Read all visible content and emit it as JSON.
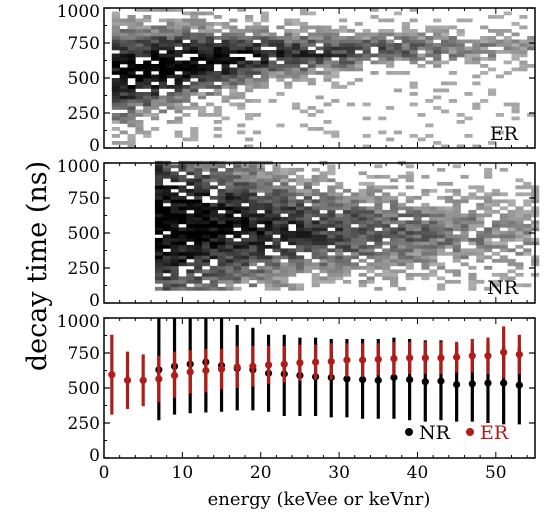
{
  "figure": {
    "ylabel": "decay time (ns)",
    "xlabel": "energy (keVee or keVnr)"
  },
  "chart_data": [
    {
      "type": "heatmap",
      "panel": "top",
      "label": "ER",
      "ylabel": "decay time (ns)",
      "xlim": [
        0,
        55
      ],
      "ylim": [
        0,
        1000
      ],
      "yticks": [
        0,
        250,
        500,
        750,
        1000
      ],
      "grid": false,
      "density_model": {
        "x_range": [
          1,
          55
        ],
        "y_center_by_energy": [
          [
            1,
            520
          ],
          [
            5,
            560
          ],
          [
            10,
            600
          ],
          [
            20,
            660
          ],
          [
            30,
            690
          ],
          [
            45,
            720
          ],
          [
            55,
            720
          ]
        ],
        "y_spread_by_energy": [
          [
            1,
            220
          ],
          [
            10,
            170
          ],
          [
            20,
            110
          ],
          [
            35,
            80
          ],
          [
            55,
            70
          ]
        ],
        "peak_energy": 8
      }
    },
    {
      "type": "heatmap",
      "panel": "middle",
      "label": "NR",
      "ylabel": "decay time (ns)",
      "xlim": [
        0,
        55
      ],
      "ylim": [
        0,
        1000
      ],
      "yticks": [
        0,
        250,
        500,
        750,
        1000
      ],
      "grid": false,
      "density_model": {
        "x_range": [
          6.5,
          55
        ],
        "y_min": 90,
        "y_center_by_energy": [
          [
            6.5,
            560
          ],
          [
            15,
            560
          ],
          [
            30,
            520
          ],
          [
            45,
            500
          ],
          [
            55,
            490
          ]
        ],
        "y_spread_by_energy": [
          [
            6.5,
            420
          ],
          [
            15,
            320
          ],
          [
            25,
            220
          ],
          [
            40,
            180
          ],
          [
            55,
            160
          ]
        ],
        "peak_energy": 7
      }
    },
    {
      "type": "scatter",
      "panel": "bottom",
      "xlabel": "energy (keVee or keVnr)",
      "ylabel": "decay time (ns)",
      "xlim": [
        0,
        55
      ],
      "ylim": [
        0,
        1000
      ],
      "xticks": [
        0,
        10,
        20,
        30,
        40,
        50
      ],
      "yticks": [
        0,
        250,
        500,
        750,
        1000
      ],
      "grid": false,
      "legend_position": "bottom-right",
      "series": [
        {
          "name": "NR",
          "color": "#000000",
          "x": [
            7,
            9,
            11,
            13,
            15,
            17,
            19,
            21,
            23,
            25,
            27,
            29,
            31,
            33,
            35,
            37,
            39,
            41,
            43,
            45,
            47,
            49,
            51,
            53
          ],
          "y": [
            630,
            655,
            670,
            685,
            660,
            640,
            630,
            605,
            600,
            590,
            580,
            575,
            565,
            560,
            555,
            575,
            560,
            545,
            550,
            525,
            530,
            535,
            535,
            520
          ],
          "yerr_low": [
            270,
            310,
            320,
            325,
            330,
            340,
            340,
            330,
            300,
            300,
            300,
            290,
            290,
            280,
            280,
            280,
            270,
            260,
            270,
            260,
            260,
            250,
            240,
            240
          ],
          "yerr_high": [
            1000,
            1000,
            1000,
            1000,
            1000,
            950,
            930,
            880,
            880,
            860,
            860,
            850,
            850,
            850,
            850,
            860,
            850,
            840,
            840,
            810,
            800,
            810,
            800,
            790
          ]
        },
        {
          "name": "ER",
          "color": "#b01c17",
          "x": [
            1,
            3,
            5,
            7,
            9,
            11,
            13,
            15,
            17,
            19,
            21,
            23,
            25,
            27,
            29,
            31,
            33,
            35,
            37,
            39,
            41,
            43,
            45,
            47,
            49,
            51,
            53
          ],
          "y": [
            595,
            555,
            555,
            565,
            590,
            615,
            625,
            635,
            650,
            655,
            665,
            670,
            680,
            685,
            690,
            700,
            700,
            705,
            710,
            715,
            715,
            715,
            720,
            730,
            730,
            755,
            740
          ],
          "yerr_low": [
            310,
            350,
            370,
            400,
            430,
            460,
            470,
            490,
            500,
            510,
            530,
            540,
            550,
            560,
            560,
            580,
            580,
            590,
            590,
            600,
            600,
            600,
            610,
            610,
            600,
            570,
            600
          ],
          "yerr_high": [
            880,
            760,
            740,
            730,
            760,
            770,
            780,
            780,
            800,
            800,
            800,
            800,
            810,
            810,
            820,
            820,
            820,
            820,
            830,
            830,
            830,
            830,
            830,
            850,
            860,
            940,
            880
          ]
        }
      ]
    }
  ]
}
